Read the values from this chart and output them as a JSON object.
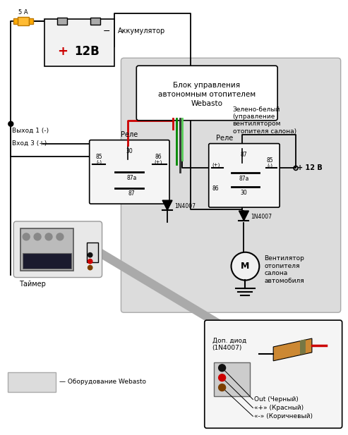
{
  "bg_color": "#ffffff",
  "light_gray": "#dcdcdc",
  "black": "#000000",
  "red": "#cc0000",
  "dark_green": "#008800",
  "gray_wire": "#aaaaaa",
  "relay_fill": "#f5f5f5",
  "labels": {
    "akkum": "Аккумулятор",
    "fuse": "5 А",
    "vyhod1": "Выход 1 (-)",
    "vhod3": "Вход 3 (+)",
    "rele": "Реле",
    "timer": "Таймер",
    "dop_diod": "Доп. диод\n(1N4007)",
    "diode1": "1N4007",
    "diode2": "1N4007",
    "ventilator": "Вентилятор\nотопителя\nсалона\nавтомобиля",
    "plus12": "+ 12 В",
    "zelenobely": "Зелено-белый\n(управление\nвентилятором\nотопителя салона)",
    "obor_webasto": "— Оборудование Webasto",
    "webasto_block": "Блок управления\nавтономным отопителем\nWebasto",
    "out_black": "Out (Черный)",
    "plus_red": "«+» (Красный)",
    "minus_brown": "«-» (Коричневый)"
  }
}
